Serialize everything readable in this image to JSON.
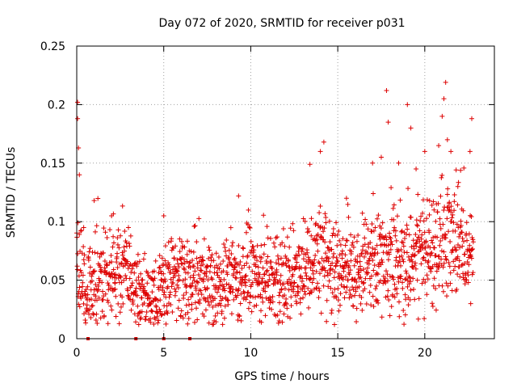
{
  "chart_data": {
    "type": "scatter",
    "title": "Day 072 of 2020, SRMTID for receiver p031",
    "xlabel": "GPS time / hours",
    "ylabel": "SRMTID / TECUs",
    "xlim": [
      0,
      24
    ],
    "ylim": [
      0,
      0.25
    ],
    "xticks": [
      0,
      5,
      10,
      15,
      20
    ],
    "xtick_labels": [
      "0",
      "5",
      "10",
      "15",
      "20"
    ],
    "yticks": [
      0,
      0.05,
      0.1,
      0.15,
      0.2,
      0.25
    ],
    "ytick_labels": [
      "0",
      "0.05",
      "0.1",
      "0.15",
      "0.2",
      "0.25"
    ],
    "grid": true,
    "marker": "+",
    "color": "#dd0000",
    "zero_markers_x": [
      0.65,
      3.4,
      5.0,
      6.5
    ],
    "series": [
      {
        "name": "SRMTID",
        "trend": [
          [
            0.0,
            0.065
          ],
          [
            0.5,
            0.045
          ],
          [
            1.0,
            0.048
          ],
          [
            2.0,
            0.055
          ],
          [
            3.0,
            0.05
          ],
          [
            3.5,
            0.035
          ],
          [
            4.5,
            0.038
          ],
          [
            5.0,
            0.045
          ],
          [
            6.0,
            0.052
          ],
          [
            7.0,
            0.05
          ],
          [
            8.0,
            0.05
          ],
          [
            9.0,
            0.05
          ],
          [
            10.0,
            0.055
          ],
          [
            11.0,
            0.055
          ],
          [
            12.0,
            0.05
          ],
          [
            13.0,
            0.058
          ],
          [
            14.0,
            0.065
          ],
          [
            15.0,
            0.06
          ],
          [
            16.0,
            0.055
          ],
          [
            16.5,
            0.062
          ],
          [
            17.0,
            0.07
          ],
          [
            18.0,
            0.075
          ],
          [
            19.0,
            0.065
          ],
          [
            20.0,
            0.075
          ],
          [
            21.0,
            0.085
          ],
          [
            22.0,
            0.08
          ],
          [
            22.8,
            0.07
          ]
        ],
        "peaks": [
          [
            0.05,
            0.202
          ],
          [
            0.05,
            0.188
          ],
          [
            0.1,
            0.163
          ],
          [
            0.15,
            0.14
          ],
          [
            0.4,
            0.095
          ],
          [
            1.0,
            0.118
          ],
          [
            2.0,
            0.105
          ],
          [
            5.0,
            0.105
          ],
          [
            9.3,
            0.122
          ],
          [
            13.4,
            0.149
          ],
          [
            14.0,
            0.16
          ],
          [
            14.2,
            0.168
          ],
          [
            15.5,
            0.12
          ],
          [
            17.0,
            0.15
          ],
          [
            17.5,
            0.155
          ],
          [
            17.8,
            0.212
          ],
          [
            17.9,
            0.185
          ],
          [
            18.5,
            0.15
          ],
          [
            19.0,
            0.2
          ],
          [
            19.2,
            0.18
          ],
          [
            19.5,
            0.145
          ],
          [
            20.0,
            0.16
          ],
          [
            20.8,
            0.165
          ],
          [
            21.0,
            0.19
          ],
          [
            21.1,
            0.205
          ],
          [
            21.2,
            0.219
          ],
          [
            21.3,
            0.17
          ],
          [
            21.5,
            0.16
          ],
          [
            21.9,
            0.13
          ],
          [
            22.7,
            0.188
          ],
          [
            22.6,
            0.16
          ]
        ]
      }
    ]
  }
}
